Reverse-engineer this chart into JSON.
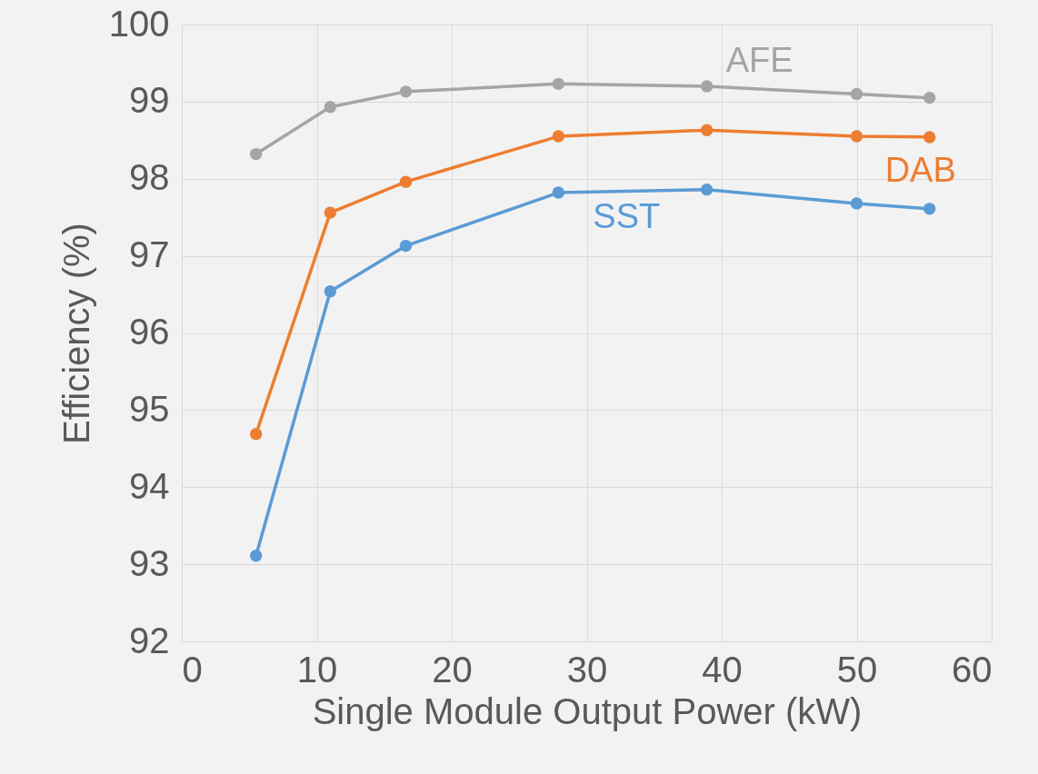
{
  "chart_data": {
    "type": "line",
    "xlabel": "Single Module Output Power (kW)",
    "ylabel": "Efficiency (%)",
    "x": [
      5.5,
      11,
      16.6,
      27.9,
      38.9,
      50,
      55.4
    ],
    "series": [
      {
        "name": "AFE",
        "color": "#a5a5a5",
        "values": [
          98.32,
          98.93,
          99.13,
          99.23,
          99.2,
          99.1,
          99.05
        ]
      },
      {
        "name": "DAB",
        "color": "#ed7d31",
        "values": [
          94.69,
          97.56,
          97.96,
          98.55,
          98.63,
          98.55,
          98.54
        ]
      },
      {
        "name": "SST",
        "color": "#5b9bd5",
        "values": [
          93.11,
          96.54,
          97.13,
          97.82,
          97.86,
          97.68,
          97.61
        ]
      }
    ],
    "xlim": [
      0,
      60
    ],
    "xticks": [
      0,
      10,
      20,
      30,
      40,
      50,
      60
    ],
    "ylim": [
      92,
      100
    ],
    "yticks": [
      92,
      93,
      94,
      95,
      96,
      97,
      98,
      99,
      100
    ],
    "grid": true,
    "legend": false,
    "marker": "circle",
    "line_style": "solid"
  }
}
